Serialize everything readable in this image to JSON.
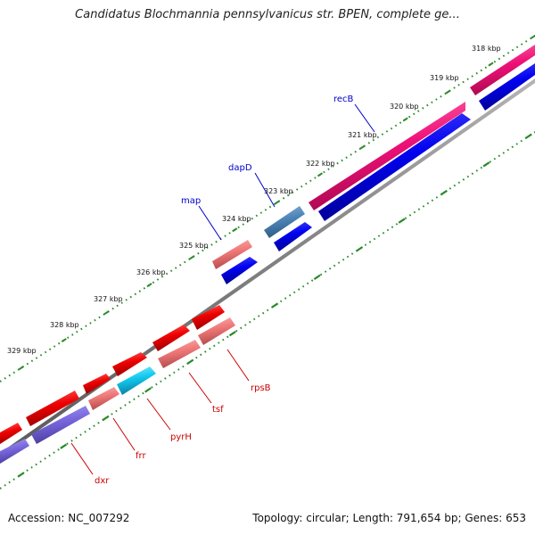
{
  "title": "Candidatus Blochmannia pennsylvanicus str. BPEN, complete ge...",
  "footer": {
    "accession": "Accession: NC_007292",
    "topology": "Topology: circular; Length: 791,654 bp; Genes: 653"
  },
  "scale_labels": [
    "318 kbp",
    "319 kbp",
    "320 kbp",
    "321 kbp",
    "322 kbp",
    "323 kbp",
    "324 kbp",
    "325 kbp",
    "326 kbp",
    "327 kbp",
    "328 kbp",
    "329 kbp"
  ],
  "gene_labels": [
    {
      "name": "recB",
      "color": "#0000cc"
    },
    {
      "name": "dapD",
      "color": "#0000cc"
    },
    {
      "name": "map",
      "color": "#0000cc"
    },
    {
      "name": "rpsB",
      "color": "#cc0000"
    },
    {
      "name": "tsf",
      "color": "#cc0000"
    },
    {
      "name": "pyrH",
      "color": "#cc0000"
    },
    {
      "name": "frr",
      "color": "#cc0000"
    },
    {
      "name": "dxr",
      "color": "#cc0000"
    }
  ]
}
